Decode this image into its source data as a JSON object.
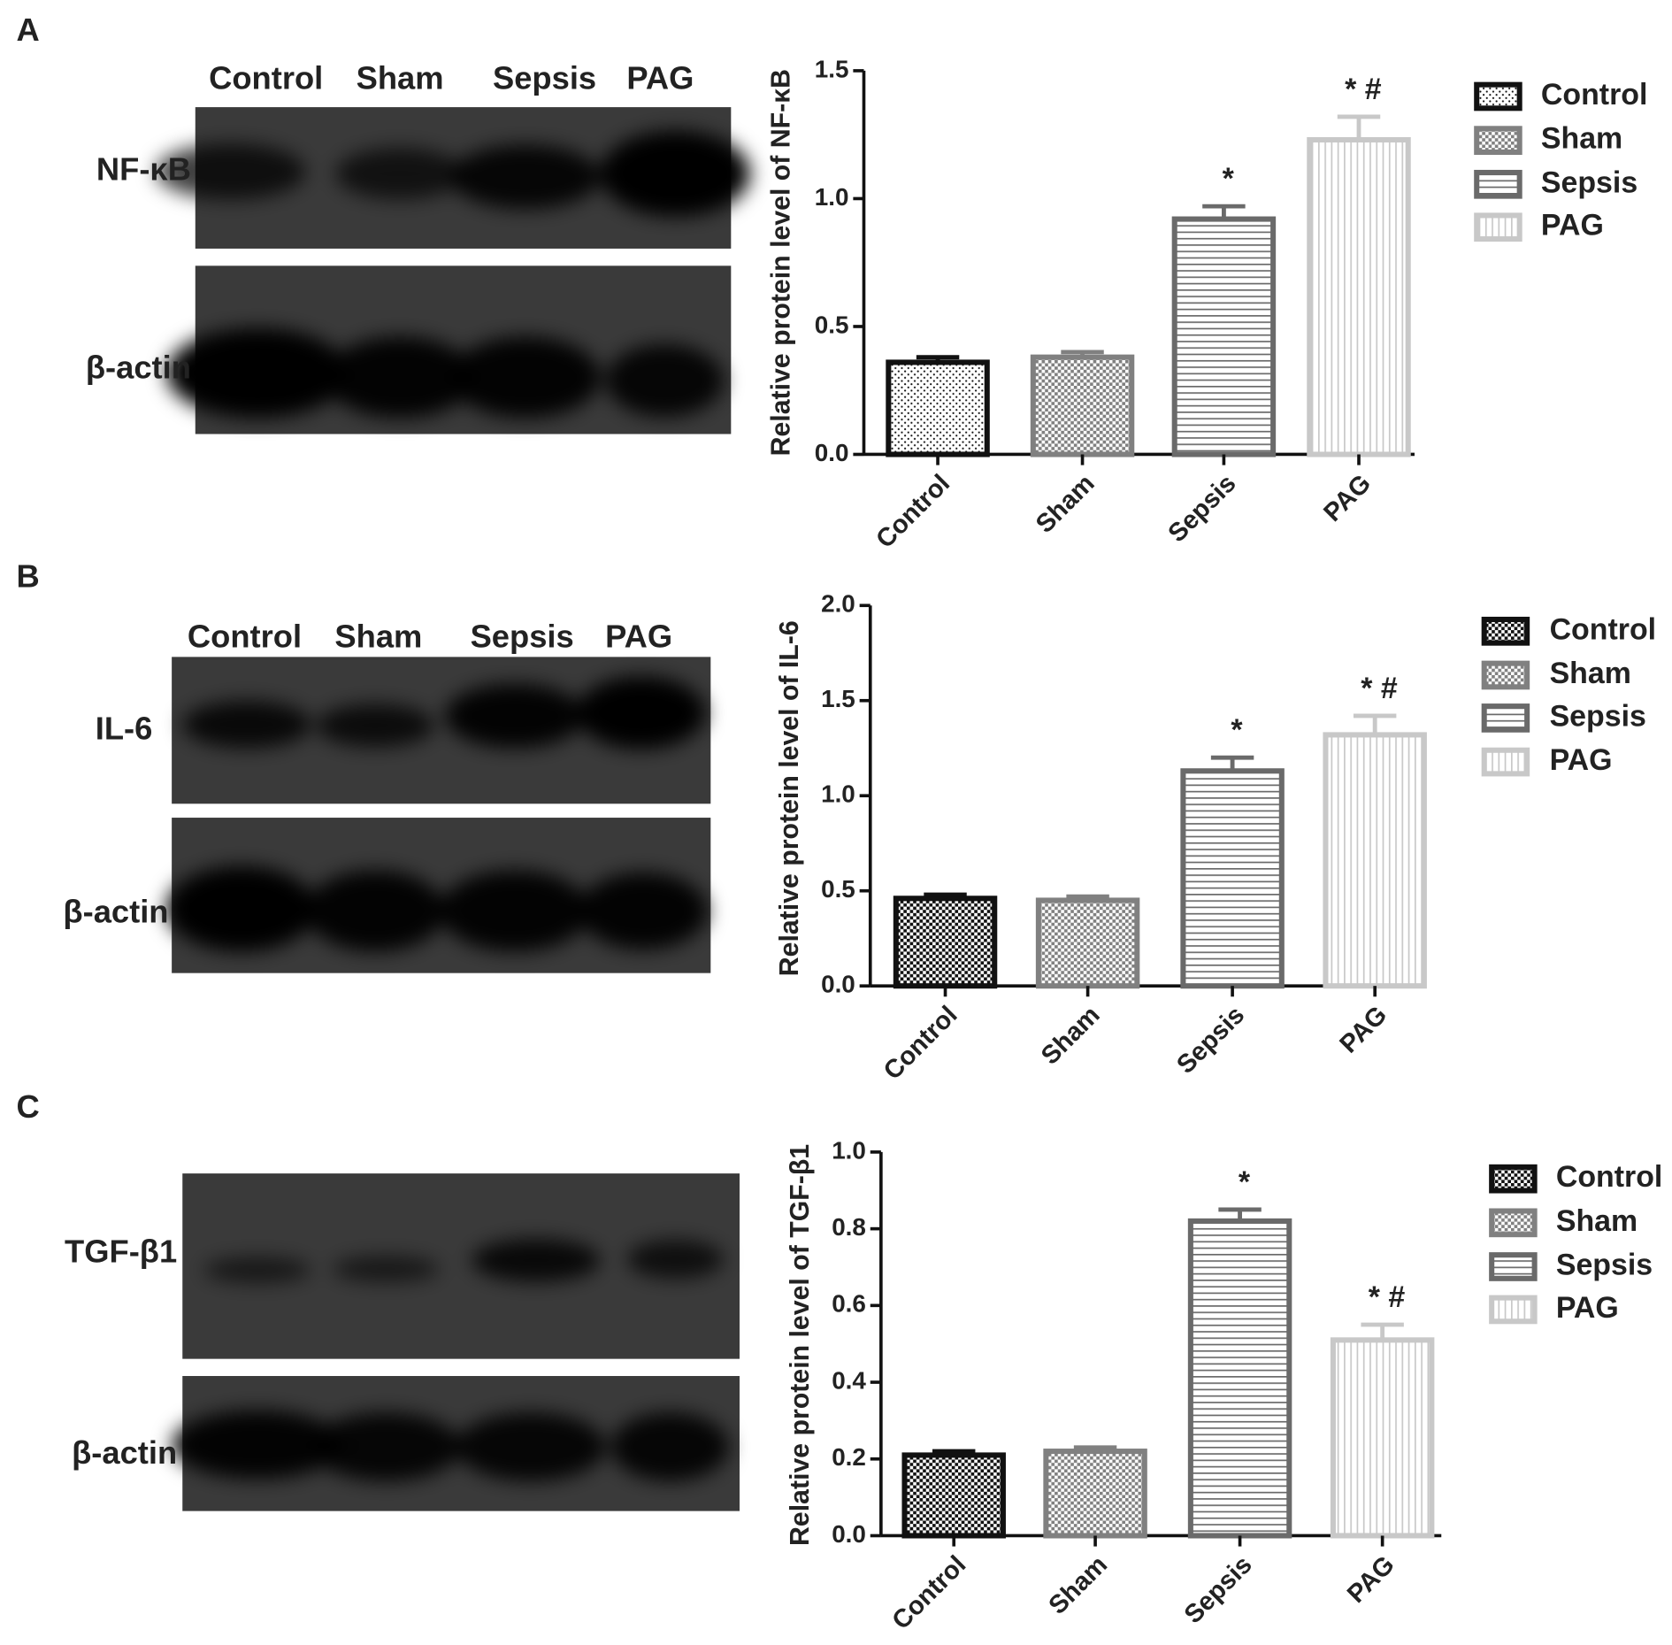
{
  "chart_data": [
    {
      "type": "bar",
      "panel": "A",
      "blot": {
        "lanes": [
          "Control",
          "Sham",
          "Sepsis",
          "PAG"
        ],
        "rows": [
          "NF-κB",
          "β-actin"
        ]
      },
      "ylabel": "Relative protein level of NF-κB",
      "categories": [
        "Control",
        "Sham",
        "Sepsis",
        "PAG"
      ],
      "values": [
        0.36,
        0.38,
        0.92,
        1.23
      ],
      "errors": [
        0.02,
        0.02,
        0.05,
        0.09
      ],
      "annotations": [
        null,
        null,
        "*",
        "* #"
      ],
      "colors": [
        "#111111",
        "#808080",
        "#6a6a6a",
        "#c8c8c8"
      ],
      "patterns": [
        "dots",
        "checker",
        "hlines",
        "vlines"
      ],
      "ylim": [
        0,
        1.5
      ],
      "yticks": [
        {
          "value": 0,
          "label": "0.0"
        },
        0.5,
        {
          "value": 1,
          "label": "1.0"
        },
        1.5
      ]
    },
    {
      "type": "bar",
      "panel": "B",
      "blot": {
        "lanes": [
          "Control",
          "Sham",
          "Sepsis",
          "PAG"
        ],
        "rows": [
          "IL-6",
          "β-actin"
        ]
      },
      "ylabel": "Relative protein level of IL-6",
      "categories": [
        "Control",
        "Sham",
        "Sepsis",
        "PAG"
      ],
      "values": [
        0.46,
        0.45,
        1.13,
        1.32
      ],
      "errors": [
        0.02,
        0.02,
        0.07,
        0.1
      ],
      "annotations": [
        null,
        null,
        "*",
        "* #"
      ],
      "colors": [
        "#111111",
        "#808080",
        "#6a6a6a",
        "#c8c8c8"
      ],
      "patterns": [
        "checker",
        "checker",
        "hlines",
        "vlines"
      ],
      "ylim": [
        0,
        2
      ],
      "yticks": [
        {
          "value": 0,
          "label": "0.0"
        },
        0.5,
        {
          "value": 1,
          "label": "1.0"
        },
        1.5,
        {
          "value": 2,
          "label": "2.0"
        }
      ]
    },
    {
      "type": "bar",
      "panel": "C",
      "blot": {
        "lanes": [
          "Control",
          "Sham",
          "Sepsis",
          "PAG"
        ],
        "rows": [
          "TGF-β1",
          "β-actin"
        ]
      },
      "ylabel": "Relative protein level of TGF-β1",
      "categories": [
        "Control",
        "Sham",
        "Sepsis",
        "PAG"
      ],
      "values": [
        0.21,
        0.22,
        0.82,
        0.51
      ],
      "errors": [
        0.01,
        0.01,
        0.03,
        0.04
      ],
      "annotations": [
        null,
        null,
        "*",
        "* #"
      ],
      "colors": [
        "#111111",
        "#808080",
        "#6a6a6a",
        "#c8c8c8"
      ],
      "patterns": [
        "checker",
        "checker",
        "hlines",
        "vlines"
      ],
      "ylim": [
        0,
        1
      ],
      "yticks": [
        {
          "value": 0,
          "label": "0.0"
        },
        0.2,
        0.4,
        0.6,
        0.8,
        {
          "value": 1,
          "label": "1.0"
        }
      ]
    }
  ]
}
